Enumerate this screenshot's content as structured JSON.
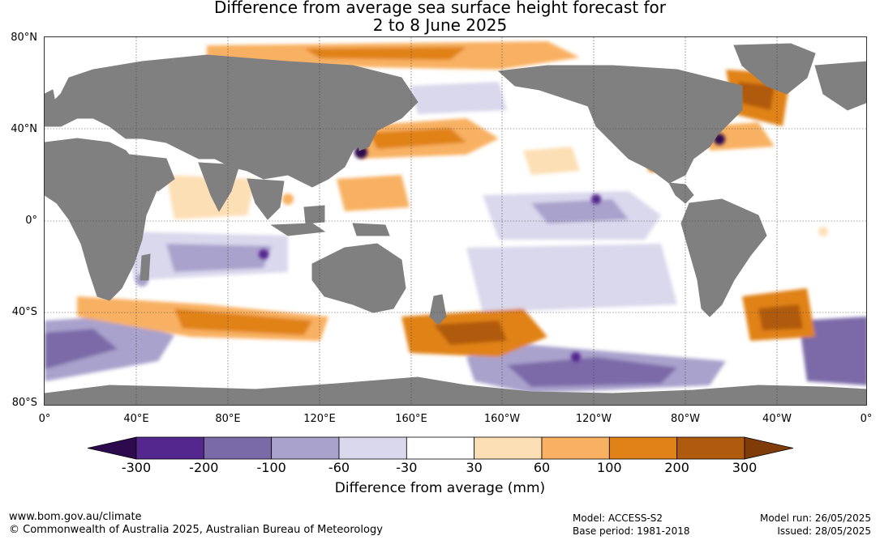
{
  "title": {
    "line1": "Difference from average sea surface height forecast for",
    "line2": "2 to 8 June 2025"
  },
  "map": {
    "lat_labels": [
      "80°N",
      "40°N",
      "0°",
      "40°S",
      "80°S"
    ],
    "lon_labels": [
      "0°",
      "40°E",
      "80°E",
      "120°E",
      "160°E",
      "160°W",
      "120°W",
      "80°W",
      "40°W",
      "0°"
    ],
    "land_color": "#808080",
    "ocean_neutral_color": "#ffffff"
  },
  "legend": {
    "title": "Difference from average (mm)",
    "ticks": [
      "-300",
      "-200",
      "-100",
      "-60",
      "-30",
      "30",
      "60",
      "100",
      "200",
      "300"
    ],
    "colors": [
      "#2d0a4e",
      "#54278f",
      "#7b6aa8",
      "#a9a2cc",
      "#d9d8ec",
      "#ffffff",
      "#fddfb5",
      "#f8b162",
      "#e08218",
      "#b05a0e",
      "#7f3b08"
    ]
  },
  "footer": {
    "website": "www.bom.gov.au/climate",
    "copyright": "© Commonwealth of Australia 2025, Australian Bureau of Meteorology",
    "model": "Model: ACCESS-S2",
    "base_period": "Base period: 1981-2018",
    "model_run": "Model run: 26/05/2025",
    "issued": "Issued: 28/05/2025"
  }
}
